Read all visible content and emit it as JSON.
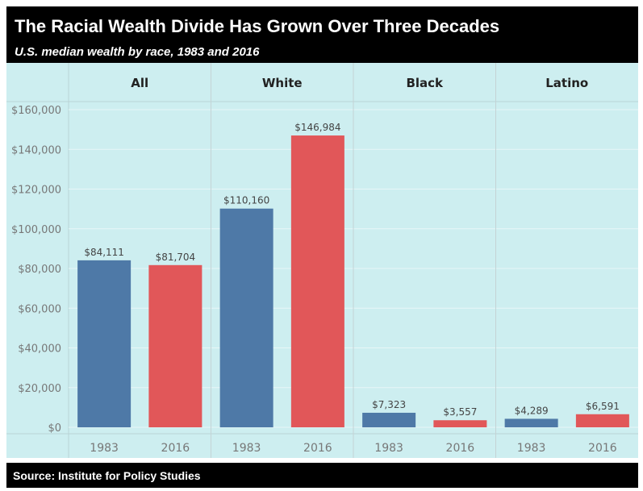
{
  "header": {
    "title": "The Racial Wealth Divide Has Grown Over Three Decades",
    "subtitle": "U.S. median wealth by race, 1983 and 2016"
  },
  "footer": {
    "source": "Source: Institute for Policy Studies"
  },
  "chart_data": {
    "type": "bar",
    "panels": [
      "All",
      "White",
      "Black",
      "Latino"
    ],
    "categories": [
      "1983",
      "2016"
    ],
    "values": [
      [
        84111,
        81704
      ],
      [
        110160,
        146984
      ],
      [
        7323,
        3557
      ],
      [
        4289,
        6591
      ]
    ],
    "value_labels": [
      [
        "$84,111",
        "$81,704"
      ],
      [
        "$110,160",
        "$146,984"
      ],
      [
        "$7,323",
        "$3,557"
      ],
      [
        "$4,289",
        "$6,591"
      ]
    ],
    "bar_colors": [
      "#4e79a7",
      "#e15759"
    ],
    "ylim": [
      0,
      160000
    ],
    "yticks": [
      0,
      20000,
      40000,
      60000,
      80000,
      100000,
      120000,
      140000,
      160000
    ],
    "ytick_labels": [
      "$0",
      "$20,000",
      "$40,000",
      "$60,000",
      "$80,000",
      "$100,000",
      "$120,000",
      "$140,000",
      "$160,000"
    ],
    "grid": true,
    "background": "#cdeef0"
  }
}
